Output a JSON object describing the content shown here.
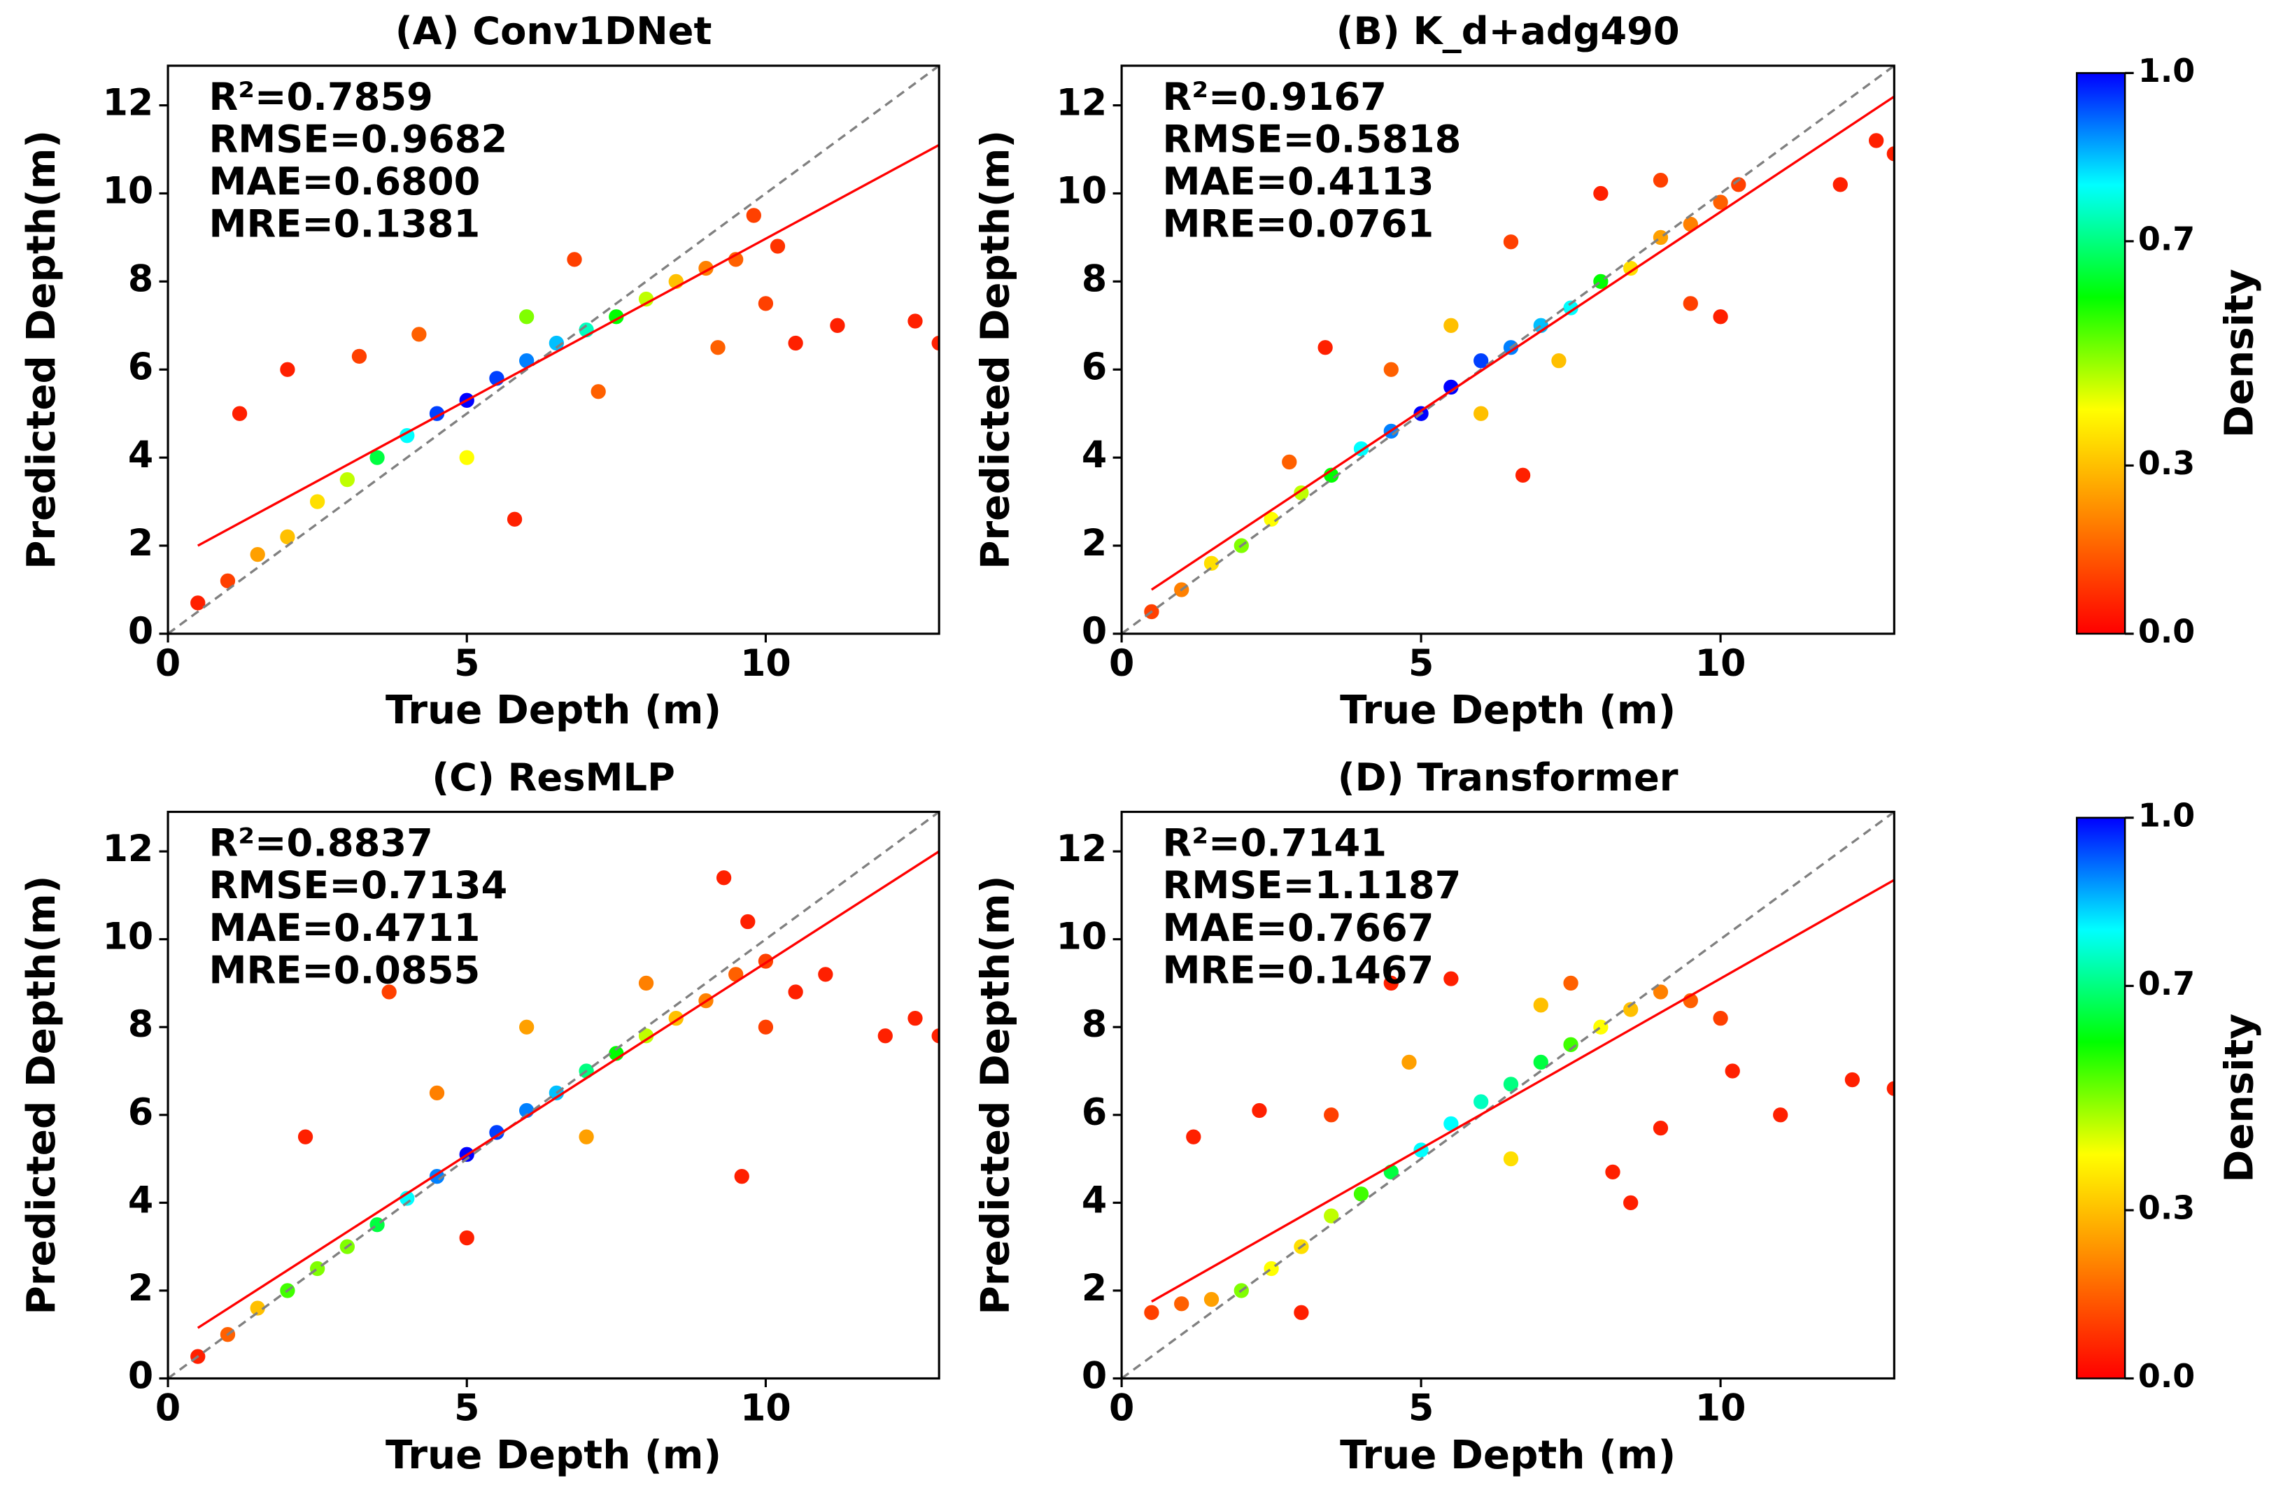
{
  "chart_data": [
    {
      "type": "scatter",
      "title": "(A) Conv1DNet",
      "xlabel": "True Depth (m)",
      "ylabel": "Predicted Depth(m)",
      "annotations": [
        "R²=0.7859",
        "RMSE=0.9682",
        "MAE=0.6800",
        "MRE=0.1381"
      ],
      "xlim": [
        0,
        12.9
      ],
      "ylim": [
        0,
        12.9
      ],
      "xticks": [
        0,
        5,
        10
      ],
      "yticks": [
        0,
        2,
        4,
        6,
        8,
        10,
        12
      ],
      "reference_line": {
        "x": [
          0,
          12.9
        ],
        "y": [
          0,
          12.9
        ],
        "color": "#808080"
      },
      "fit_line": {
        "x": [
          0.5,
          12.9
        ],
        "y": [
          2.0,
          11.1
        ],
        "color": "#ff0000"
      },
      "x": [
        0.5,
        1.2,
        2,
        5.8,
        12.9,
        12.5,
        11.2,
        10.5,
        1,
        1.5,
        2,
        2.5,
        3,
        3.2,
        4.2,
        7.2,
        6.8,
        9.2,
        10,
        10.2,
        9.8,
        9.5,
        9,
        8.5,
        3.5,
        8,
        7.5,
        5,
        6,
        4,
        7,
        6.5,
        6,
        5.5,
        4.5,
        5
      ],
      "y": [
        0.7,
        5,
        6,
        2.6,
        6.6,
        7.1,
        7,
        6.6,
        1.2,
        1.8,
        2.2,
        3,
        3.5,
        6.3,
        6.8,
        5.5,
        8.5,
        6.5,
        7.5,
        8.8,
        9.5,
        8.5,
        8.3,
        8,
        4,
        7.6,
        7.2,
        4,
        7.2,
        4.5,
        6.9,
        6.6,
        6.2,
        5.8,
        5,
        5.3
      ],
      "density": [
        0.05,
        0.05,
        0.05,
        0.05,
        0.05,
        0.05,
        0.05,
        0.05,
        0.1,
        0.25,
        0.3,
        0.35,
        0.45,
        0.1,
        0.15,
        0.15,
        0.1,
        0.15,
        0.1,
        0.08,
        0.1,
        0.15,
        0.2,
        0.3,
        0.65,
        0.45,
        0.6,
        0.4,
        0.5,
        0.8,
        0.75,
        0.85,
        0.9,
        0.95,
        0.95,
        1.0
      ]
    },
    {
      "type": "scatter",
      "title": "(B) K_d+adg490",
      "xlabel": "True Depth (m)",
      "ylabel": "Predicted Depth(m)",
      "annotations": [
        "R²=0.9167",
        "RMSE=0.5818",
        "MAE=0.4113",
        "MRE=0.0761"
      ],
      "xlim": [
        0,
        12.9
      ],
      "ylim": [
        0,
        12.9
      ],
      "xticks": [
        0,
        5,
        10
      ],
      "yticks": [
        0,
        2,
        4,
        6,
        8,
        10,
        12
      ],
      "reference_line": {
        "x": [
          0,
          12.9
        ],
        "y": [
          0,
          12.9
        ],
        "color": "#808080"
      },
      "fit_line": {
        "x": [
          0.5,
          12.9
        ],
        "y": [
          1.0,
          12.2
        ],
        "color": "#ff0000"
      },
      "x": [
        0.5,
        10,
        8,
        6.7,
        3.4,
        12,
        12.9,
        12.6,
        6.5,
        9.5,
        10.3,
        9,
        4.5,
        2.8,
        1,
        10,
        9.5,
        9,
        5.5,
        6,
        7.3,
        8.5,
        1.5,
        2.5,
        3,
        2,
        8,
        3.5,
        7.5,
        4,
        7,
        6.5,
        4.5,
        6,
        5,
        5.5
      ],
      "y": [
        0.5,
        7.2,
        10,
        3.6,
        6.5,
        10.2,
        10.9,
        11.2,
        8.9,
        7.5,
        10.2,
        10.3,
        6,
        3.9,
        1,
        9.8,
        9.3,
        9,
        7,
        5,
        6.2,
        8.3,
        1.6,
        2.6,
        3.2,
        2,
        8,
        3.6,
        7.4,
        4.2,
        7,
        6.5,
        4.6,
        6.2,
        5,
        5.6
      ],
      "density": [
        0.1,
        0.05,
        0.05,
        0.05,
        0.05,
        0.05,
        0.05,
        0.05,
        0.1,
        0.1,
        0.1,
        0.1,
        0.15,
        0.15,
        0.2,
        0.15,
        0.2,
        0.25,
        0.3,
        0.3,
        0.3,
        0.35,
        0.35,
        0.4,
        0.45,
        0.5,
        0.6,
        0.6,
        0.8,
        0.8,
        0.85,
        0.9,
        0.9,
        0.95,
        1,
        1
      ]
    },
    {
      "type": "scatter",
      "title": "(C) ResMLP",
      "xlabel": "True Depth (m)",
      "ylabel": "Predicted Depth(m)",
      "annotations": [
        "R²=0.8837",
        "RMSE=0.7134",
        "MAE=0.4711",
        "MRE=0.0855"
      ],
      "xlim": [
        0,
        12.9
      ],
      "ylim": [
        0,
        12.9
      ],
      "xticks": [
        0,
        5,
        10
      ],
      "yticks": [
        0,
        2,
        4,
        6,
        8,
        10,
        12
      ],
      "reference_line": {
        "x": [
          0,
          12.9
        ],
        "y": [
          0,
          12.9
        ],
        "color": "#808080"
      },
      "fit_line": {
        "x": [
          0.5,
          12.9
        ],
        "y": [
          1.15,
          12.0
        ],
        "color": "#ff0000"
      },
      "x": [
        0.5,
        10.5,
        9.3,
        9.7,
        9.6,
        11,
        12,
        12.5,
        12.9,
        2.3,
        5,
        3.7,
        1,
        9.5,
        10,
        10,
        9,
        4.5,
        6,
        7,
        8,
        8.5,
        1.5,
        8,
        3,
        2.5,
        2,
        7.5,
        3.5,
        7,
        4,
        6.5,
        4.5,
        6,
        5.5,
        5
      ],
      "y": [
        0.5,
        8.8,
        11.4,
        10.4,
        4.6,
        9.2,
        7.8,
        8.2,
        7.8,
        5.5,
        3.2,
        8.8,
        1,
        9.2,
        9.5,
        8,
        8.6,
        6.5,
        8,
        5.5,
        9,
        8.2,
        1.6,
        7.8,
        3,
        2.5,
        2,
        7.4,
        3.5,
        7,
        4.1,
        6.5,
        4.6,
        6.1,
        5.6,
        5.1
      ],
      "density": [
        0.05,
        0.05,
        0.05,
        0.05,
        0.05,
        0.05,
        0.05,
        0.05,
        0.05,
        0.05,
        0.05,
        0.1,
        0.15,
        0.15,
        0.1,
        0.1,
        0.2,
        0.2,
        0.25,
        0.25,
        0.2,
        0.3,
        0.3,
        0.45,
        0.5,
        0.5,
        0.55,
        0.6,
        0.65,
        0.7,
        0.8,
        0.85,
        0.9,
        0.9,
        0.95,
        1
      ]
    },
    {
      "type": "scatter",
      "title": "(D) Transformer",
      "xlabel": "True Depth (m)",
      "ylabel": "Predicted Depth(m)",
      "annotations": [
        "R²=0.7141",
        "RMSE=1.1187",
        "MAE=0.7667",
        "MRE=0.1467"
      ],
      "xlim": [
        0,
        12.9
      ],
      "ylim": [
        0,
        12.9
      ],
      "xticks": [
        0,
        5,
        10
      ],
      "yticks": [
        0,
        2,
        4,
        6,
        8,
        10,
        12
      ],
      "reference_line": {
        "x": [
          0,
          12.9
        ],
        "y": [
          0,
          12.9
        ],
        "color": "#808080"
      },
      "fit_line": {
        "x": [
          0.5,
          12.9
        ],
        "y": [
          1.75,
          11.35
        ],
        "color": "#ff0000"
      },
      "x": [
        10.2,
        8.5,
        8.2,
        9,
        4.5,
        5.5,
        1.2,
        2.3,
        3,
        11,
        12.2,
        12.9,
        0.5,
        3.5,
        10,
        1,
        9.5,
        7.5,
        9,
        4.8,
        1.5,
        8.5,
        7,
        6.5,
        3,
        3.5,
        2.5,
        8,
        2,
        4,
        7.5,
        4.5,
        7,
        6.5,
        6,
        5,
        5.5
      ],
      "y": [
        7,
        4,
        4.7,
        5.7,
        9,
        9.1,
        5.5,
        6.1,
        1.5,
        6,
        6.8,
        6.6,
        1.5,
        6,
        8.2,
        1.7,
        8.6,
        9,
        8.8,
        7.2,
        1.8,
        8.4,
        8.5,
        5,
        3,
        3.7,
        2.5,
        8,
        2,
        4.2,
        7.6,
        4.7,
        7.2,
        6.7,
        6.3,
        5.2,
        5.8
      ],
      "density": [
        0.05,
        0.05,
        0.05,
        0.05,
        0.05,
        0.05,
        0.05,
        0.05,
        0.05,
        0.05,
        0.05,
        0.05,
        0.1,
        0.1,
        0.1,
        0.15,
        0.15,
        0.15,
        0.2,
        0.25,
        0.25,
        0.3,
        0.3,
        0.35,
        0.35,
        0.45,
        0.4,
        0.4,
        0.5,
        0.55,
        0.55,
        0.65,
        0.65,
        0.7,
        0.75,
        0.8,
        0.8
      ]
    }
  ],
  "colorbars": [
    {
      "label": "Density",
      "lim": [
        0,
        1
      ],
      "ticks": [
        {
          "value": 0,
          "label": "0.0"
        },
        {
          "value": 0.3,
          "label": "0.3"
        },
        {
          "value": 0.7,
          "label": "0.7"
        },
        {
          "value": 1,
          "label": "1.0"
        }
      ],
      "colormap": [
        "#ff0000",
        "#ff8000",
        "#ffff00",
        "#00ff00",
        "#00ffff",
        "#0000ff"
      ]
    },
    {
      "label": "Density",
      "lim": [
        0,
        1
      ],
      "ticks": [
        {
          "value": 0,
          "label": "0.0"
        },
        {
          "value": 0.3,
          "label": "0.3"
        },
        {
          "value": 0.7,
          "label": "0.7"
        },
        {
          "value": 1,
          "label": "1.0"
        }
      ],
      "colormap": [
        "#ff0000",
        "#ff8000",
        "#ffff00",
        "#00ff00",
        "#00ffff",
        "#0000ff"
      ]
    }
  ]
}
